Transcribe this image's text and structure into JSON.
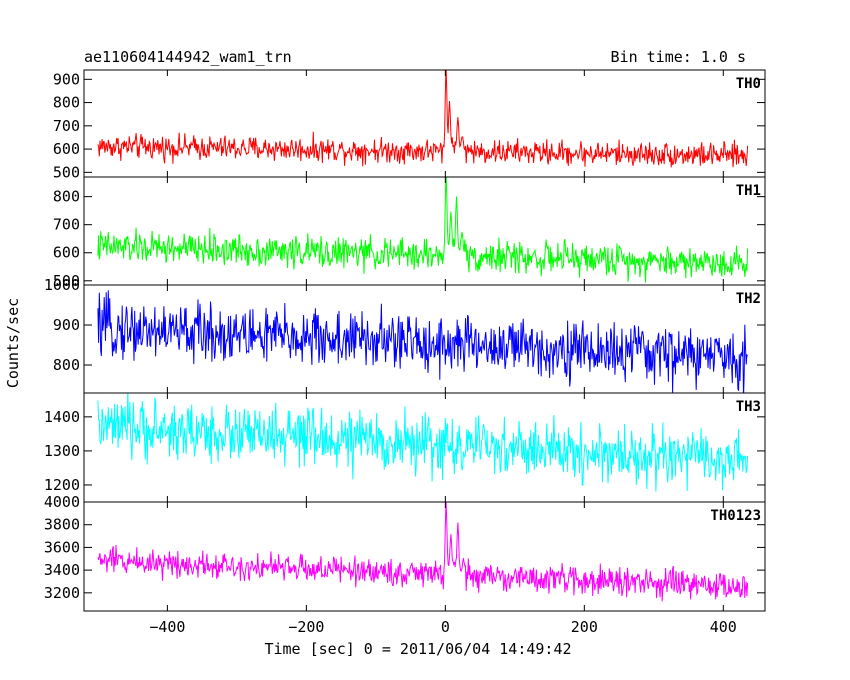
{
  "header": {
    "title": "ae110604144942_wam1_trn",
    "bin_time": "Bin time: 1.0 s"
  },
  "chart_data": {
    "type": "line",
    "title": "ae110604144942_wam1_trn",
    "subtitle": "Bin time: 1.0 s",
    "xlabel": "Time [sec] 0 = 2011/06/04 14:49:42",
    "ylabel": "Counts/sec",
    "xlim": [
      -520,
      460
    ],
    "x_range_data": [
      -500,
      435
    ],
    "x_ticks": [
      -400,
      -200,
      0,
      200,
      400
    ],
    "x_tick_labels": [
      "−400",
      "−200",
      "0",
      "200",
      "400"
    ],
    "panels": [
      {
        "name": "TH0",
        "color": "#ff0000",
        "ylim": [
          480,
          940
        ],
        "y_ticks": [
          500,
          600,
          700,
          800,
          900
        ],
        "baseline": {
          "start": 612,
          "end": 572
        },
        "noise": 26,
        "burst": [
          {
            "t": 1,
            "peak": 930
          },
          {
            "t": 6,
            "peak": 780
          },
          {
            "t": 18,
            "peak": 720
          },
          {
            "t": 24,
            "peak": 640
          }
        ]
      },
      {
        "name": "TH1",
        "color": "#00ff00",
        "ylim": [
          485,
          870
        ],
        "y_ticks": [
          500,
          600,
          700,
          800
        ],
        "baseline": {
          "start": 622,
          "end": 563
        },
        "noise": 28,
        "burst": [
          {
            "t": 1,
            "peak": 860
          },
          {
            "t": 8,
            "peak": 720
          },
          {
            "t": 16,
            "peak": 780
          },
          {
            "t": 24,
            "peak": 660
          }
        ]
      },
      {
        "name": "TH2",
        "color": "#0000ff",
        "ylim": [
          730,
          1000
        ],
        "y_ticks": [
          800,
          900,
          1000
        ],
        "baseline": {
          "start": 893,
          "end": 818
        },
        "noise": 36,
        "burst": []
      },
      {
        "name": "TH3",
        "color": "#00ffff",
        "ylim": [
          1150,
          1470
        ],
        "y_ticks": [
          1200,
          1300,
          1400
        ],
        "baseline": {
          "start": 1370,
          "end": 1270
        },
        "noise": 42,
        "burst": []
      },
      {
        "name": "TH0123",
        "color": "#ff00ff",
        "ylim": [
          3040,
          4000
        ],
        "y_ticks": [
          3200,
          3400,
          3600,
          3800,
          4000
        ],
        "baseline": {
          "start": 3490,
          "end": 3250
        },
        "noise": 60,
        "burst": [
          {
            "t": 1,
            "peak": 3950
          },
          {
            "t": 8,
            "peak": 3660
          },
          {
            "t": 18,
            "peak": 3780
          },
          {
            "t": 26,
            "peak": 3480
          }
        ]
      }
    ]
  }
}
